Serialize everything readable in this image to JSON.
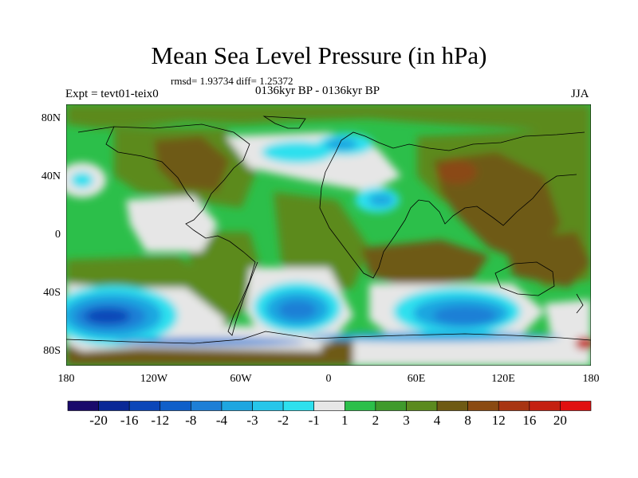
{
  "title": "Mean Sea Level Pressure (in hPa)",
  "stats": "rmsd= 1.93734 diff= 1.25372",
  "experiment": "Expt = tevt01-teix0",
  "period": "0136kyr BP - 0136kyr BP",
  "season": "JJA",
  "lat_labels": [
    "80N",
    "40N",
    "0",
    "40S",
    "80S"
  ],
  "lon_labels": [
    "180",
    "120W",
    "60W",
    "0",
    "60E",
    "120E",
    "180"
  ],
  "colorbar": {
    "labels": [
      "-20",
      "-16",
      "-12",
      "-8",
      "-4",
      "-3",
      "-2",
      "-1",
      "1",
      "2",
      "3",
      "4",
      "8",
      "12",
      "16",
      "20"
    ],
    "colors": [
      "#1a0a6b",
      "#0a2896",
      "#0b46b8",
      "#0f5fc9",
      "#1e7fd6",
      "#1ea6e0",
      "#27c6ea",
      "#2ee0ee",
      "#e6e6e6",
      "#2cbf4a",
      "#3f9a2c",
      "#5b8a1f",
      "#6e5a14",
      "#8a4a12",
      "#a83512",
      "#c42010",
      "#e01010"
    ]
  },
  "palette": {
    "ocean_base": "#2cbf4a",
    "white_band": "#e6e6e6",
    "olive": "#5b8a1f",
    "brown": "#6e5a14",
    "light_cyan": "#2ee0ee",
    "cyan": "#1ea6e0",
    "blue": "#1e7fd6",
    "deep_blue": "#0b46b8"
  }
}
